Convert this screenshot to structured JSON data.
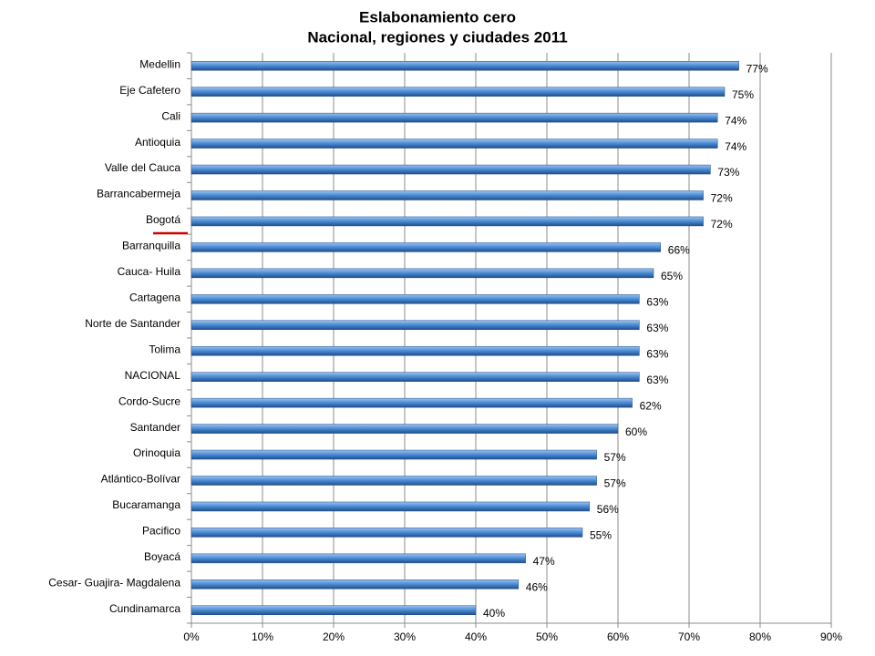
{
  "chart_data": {
    "type": "hbar",
    "title": "Eslabonamiento cero",
    "subtitle": "Nacional, regiones y ciudades 2011",
    "categories": [
      "Medellin",
      "Eje Cafetero",
      "Cali",
      "Antioquia",
      "Valle del Cauca",
      "Barrancabermeja",
      "Bogotá",
      "Barranquilla",
      "Cauca- Huila",
      "Cartagena",
      "Norte de Santander",
      "Tolima",
      "NACIONAL",
      "Cordo-Sucre",
      "Santander",
      "Orinoquia",
      "Atlántico-Bolívar",
      "Bucaramanga",
      "Pacifico",
      "Boyacá",
      "Cesar- Guajira- Magdalena",
      "Cundinamarca"
    ],
    "values": [
      77,
      75,
      74,
      74,
      73,
      72,
      72,
      66,
      65,
      63,
      63,
      63,
      63,
      62,
      60,
      57,
      57,
      56,
      55,
      47,
      46,
      40
    ],
    "value_labels": [
      "77%",
      "75%",
      "74%",
      "74%",
      "73%",
      "72%",
      "72%",
      "66%",
      "65%",
      "63%",
      "63%",
      "63%",
      "63%",
      "62%",
      "60%",
      "57%",
      "57%",
      "56%",
      "55%",
      "47%",
      "46%",
      "40%"
    ],
    "color": "#4f8fd8",
    "xlim": [
      0,
      90
    ],
    "xticks": [
      {
        "value": 0,
        "label": "0%"
      },
      {
        "value": 10,
        "label": "10%"
      },
      {
        "value": 20,
        "label": "20%"
      },
      {
        "value": 30,
        "label": "30%"
      },
      {
        "value": 40,
        "label": "40%"
      },
      {
        "value": 50,
        "label": "50%"
      },
      {
        "value": 60,
        "label": "60%"
      },
      {
        "value": 70,
        "label": "70%"
      },
      {
        "value": 80,
        "label": "80%"
      },
      {
        "value": 90,
        "label": "90%"
      }
    ],
    "grid": true
  }
}
